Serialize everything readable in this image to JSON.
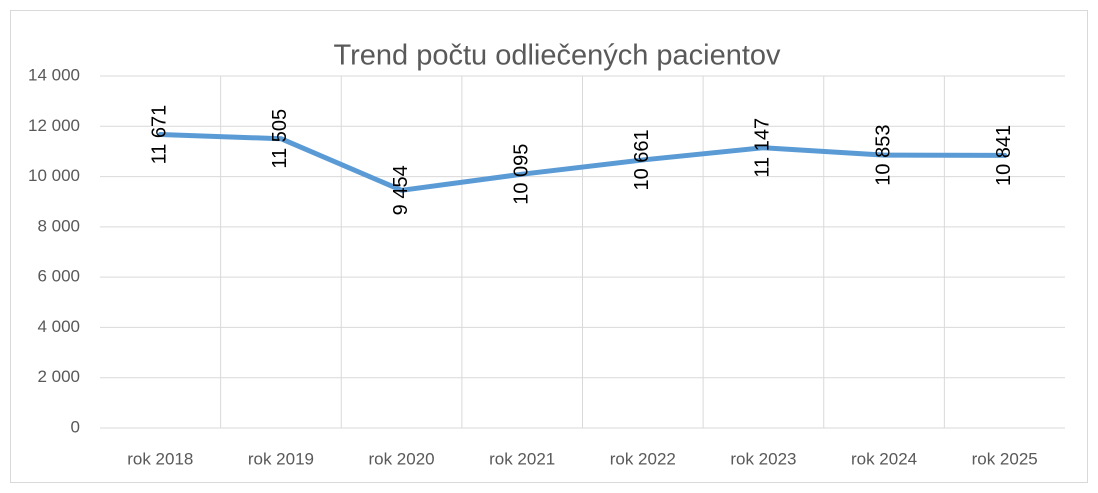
{
  "chart_data": {
    "type": "line",
    "title": "Trend počtu odliečených pacientov",
    "categories": [
      "rok 2018",
      "rok 2019",
      "rok 2020",
      "rok 2021",
      "rok 2022",
      "rok 2023",
      "rok 2024",
      "rok 2025"
    ],
    "series": [
      {
        "color": "#5b9bd5",
        "values": [
          11671,
          11505,
          9454,
          10095,
          10661,
          11147,
          10853,
          10841
        ],
        "value_labels": [
          "11 671",
          "11 505",
          "9 454",
          "10 095",
          "10 661",
          "11 147",
          "10 853",
          "10 841"
        ]
      }
    ],
    "ylim": [
      0,
      14000
    ],
    "yticks": [
      0,
      {
        "value": 2000,
        "label": "2 000"
      },
      {
        "value": 4000,
        "label": "4 000"
      },
      {
        "value": 6000,
        "label": "6 000"
      },
      {
        "value": 8000,
        "label": "8 000"
      },
      {
        "value": 10000,
        "label": "10 000"
      },
      {
        "value": 12000,
        "label": "12 000"
      },
      {
        "value": 14000,
        "label": "14 000"
      }
    ],
    "grid": true
  }
}
